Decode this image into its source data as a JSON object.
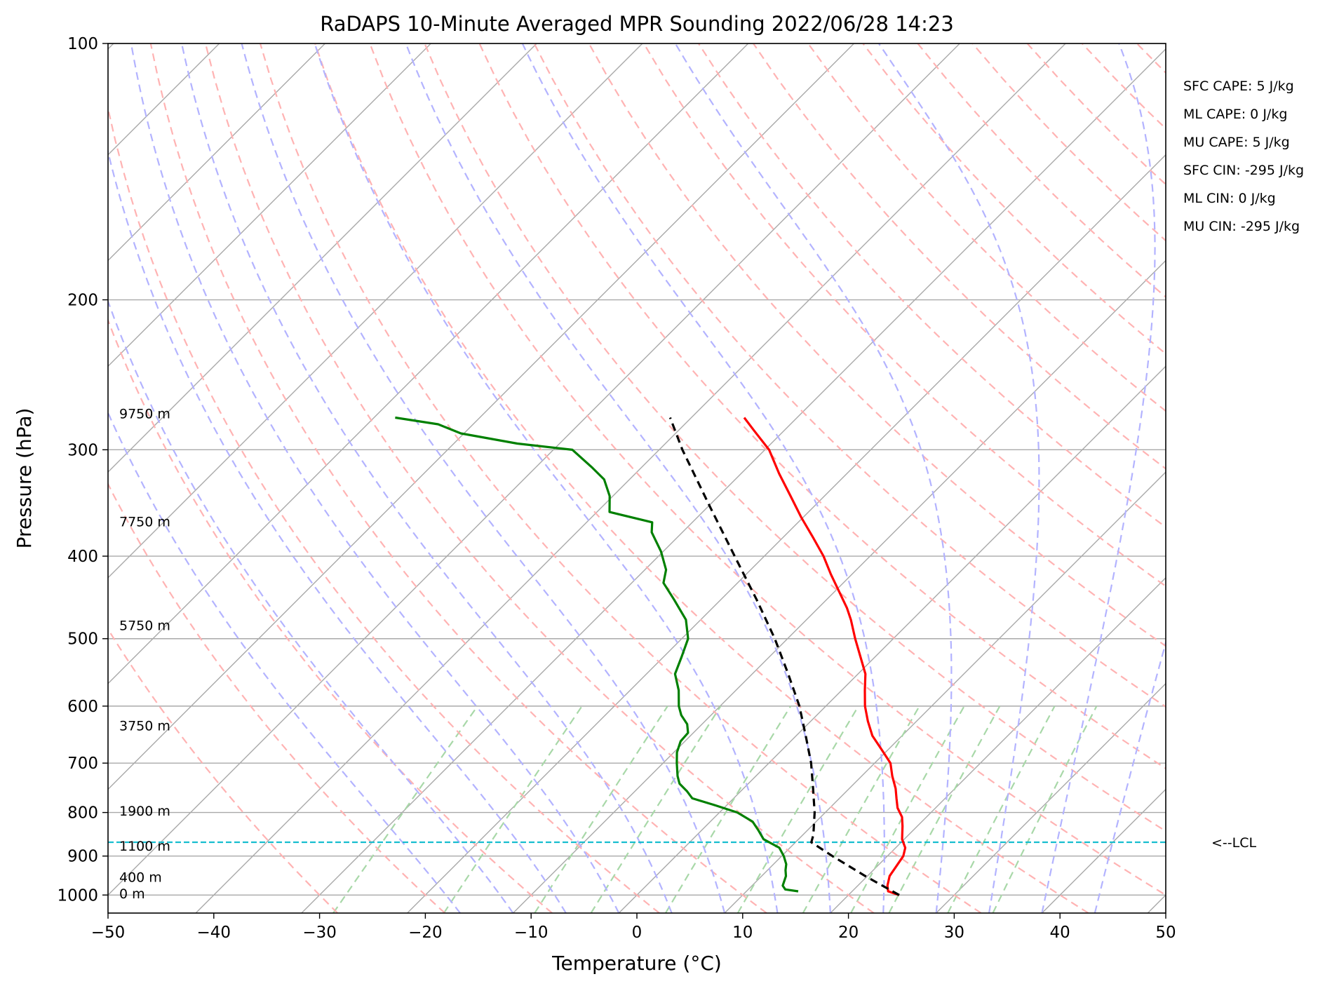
{
  "chart_data": {
    "type": "line",
    "title": "RaDAPS 10-Minute Averaged MPR Sounding 2022/06/28 14:23",
    "xlabel": "Temperature (°C)",
    "ylabel": "Pressure (hPa)",
    "xlim": [
      -50,
      50
    ],
    "ylim": [
      1050,
      100
    ],
    "y_scale": "log",
    "skew": "skew-T",
    "grid": true,
    "x_ticks": [
      -50,
      -40,
      -30,
      -20,
      -10,
      0,
      10,
      20,
      30,
      40,
      50
    ],
    "x_tick_labels": [
      "−50",
      "−40",
      "−30",
      "−20",
      "−10",
      "0",
      "10",
      "20",
      "30",
      "40",
      "50"
    ],
    "y_ticks": [
      1000,
      900,
      800,
      700,
      600,
      500,
      400,
      300,
      200,
      100
    ],
    "y_tick_labels": [
      "1000",
      "900",
      "800",
      "700",
      "600",
      "500",
      "400",
      "300",
      "200",
      "100"
    ],
    "series": [
      {
        "color": "#ff0000",
        "style": "solid",
        "points": [
          [
            1000,
            24.8
          ],
          [
            990,
            23.4
          ],
          [
            975,
            22.8
          ],
          [
            950,
            22.1
          ],
          [
            925,
            21.8
          ],
          [
            900,
            21.5
          ],
          [
            880,
            20.9
          ],
          [
            860,
            19.8
          ],
          [
            850,
            19.4
          ],
          [
            830,
            18.6
          ],
          [
            810,
            17.7
          ],
          [
            790,
            16.4
          ],
          [
            770,
            15.4
          ],
          [
            750,
            14.4
          ],
          [
            725,
            12.9
          ],
          [
            700,
            11.5
          ],
          [
            675,
            9.4
          ],
          [
            650,
            7.2
          ],
          [
            625,
            5.4
          ],
          [
            600,
            3.7
          ],
          [
            575,
            2.2
          ],
          [
            550,
            0.7
          ],
          [
            525,
            -1.4
          ],
          [
            500,
            -3.6
          ],
          [
            475,
            -5.8
          ],
          [
            460,
            -7.3
          ],
          [
            440,
            -9.6
          ],
          [
            420,
            -12.0
          ],
          [
            400,
            -14.4
          ],
          [
            380,
            -17.2
          ],
          [
            360,
            -20.2
          ],
          [
            340,
            -23.2
          ],
          [
            320,
            -26.4
          ],
          [
            300,
            -29.6
          ],
          [
            285,
            -32.8
          ],
          [
            275,
            -35.0
          ]
        ]
      },
      {
        "color": "#008000",
        "style": "solid",
        "points": [
          [
            990,
            14.9
          ],
          [
            985,
            13.5
          ],
          [
            975,
            12.9
          ],
          [
            950,
            12.3
          ],
          [
            935,
            11.7
          ],
          [
            920,
            11.2
          ],
          [
            900,
            10.2
          ],
          [
            880,
            9.0
          ],
          [
            860,
            6.7
          ],
          [
            840,
            5.4
          ],
          [
            820,
            4.0
          ],
          [
            800,
            1.7
          ],
          [
            785,
            -1.0
          ],
          [
            770,
            -3.9
          ],
          [
            755,
            -5.1
          ],
          [
            740,
            -6.5
          ],
          [
            725,
            -7.4
          ],
          [
            700,
            -8.7
          ],
          [
            680,
            -9.7
          ],
          [
            660,
            -10.4
          ],
          [
            645,
            -10.5
          ],
          [
            630,
            -11.4
          ],
          [
            615,
            -12.8
          ],
          [
            600,
            -13.9
          ],
          [
            575,
            -15.4
          ],
          [
            550,
            -17.3
          ],
          [
            525,
            -18.3
          ],
          [
            500,
            -19.4
          ],
          [
            475,
            -21.4
          ],
          [
            450,
            -24.4
          ],
          [
            430,
            -27.0
          ],
          [
            415,
            -28.0
          ],
          [
            395,
            -30.2
          ],
          [
            375,
            -32.9
          ],
          [
            365,
            -33.8
          ],
          [
            355,
            -38.8
          ],
          [
            340,
            -40.3
          ],
          [
            325,
            -42.4
          ],
          [
            315,
            -44.6
          ],
          [
            300,
            -48.2
          ],
          [
            295,
            -54.0
          ],
          [
            287,
            -60.3
          ],
          [
            280,
            -63.3
          ],
          [
            275,
            -68.0
          ]
        ]
      },
      {
        "color": "#000000",
        "style": "dashed",
        "points": [
          [
            1000,
            24.8
          ],
          [
            950,
            19.8
          ],
          [
            900,
            14.8
          ],
          [
            867,
            11.5
          ],
          [
            850,
            11.0
          ],
          [
            800,
            9.0
          ],
          [
            750,
            6.6
          ],
          [
            700,
            4.0
          ],
          [
            650,
            0.9
          ],
          [
            600,
            -2.5
          ],
          [
            550,
            -6.6
          ],
          [
            500,
            -11.2
          ],
          [
            450,
            -16.6
          ],
          [
            400,
            -22.8
          ],
          [
            350,
            -29.8
          ],
          [
            300,
            -37.8
          ],
          [
            275,
            -42.0
          ]
        ]
      }
    ],
    "height_labels": [
      {
        "text": "9750 m",
        "pressure": 272
      },
      {
        "text": "7750 m",
        "pressure": 364
      },
      {
        "text": "5750 m",
        "pressure": 482
      },
      {
        "text": "3750 m",
        "pressure": 632
      },
      {
        "text": "1900 m",
        "pressure": 796
      },
      {
        "text": "1100 m",
        "pressure": 875
      },
      {
        "text": "400 m",
        "pressure": 952
      },
      {
        "text": "0 m",
        "pressure": 996
      }
    ],
    "lcl": {
      "pressure": 867,
      "label": "<--LCL",
      "color": "#17becf"
    },
    "stats": [
      "SFC CAPE: 5 J/kg",
      "ML CAPE: 0 J/kg",
      "MU CAPE: 5 J/kg",
      "SFC CIN: -295 J/kg",
      "ML CIN: 0 J/kg",
      "MU CIN: -295 J/kg"
    ],
    "reference_line_colors": {
      "isotherm": "#a9a9a9",
      "dry_adiabat": "#ffb3b3",
      "moist_adiabat": "#b3b3ff",
      "mixing_ratio": "#a8d8a8"
    }
  }
}
